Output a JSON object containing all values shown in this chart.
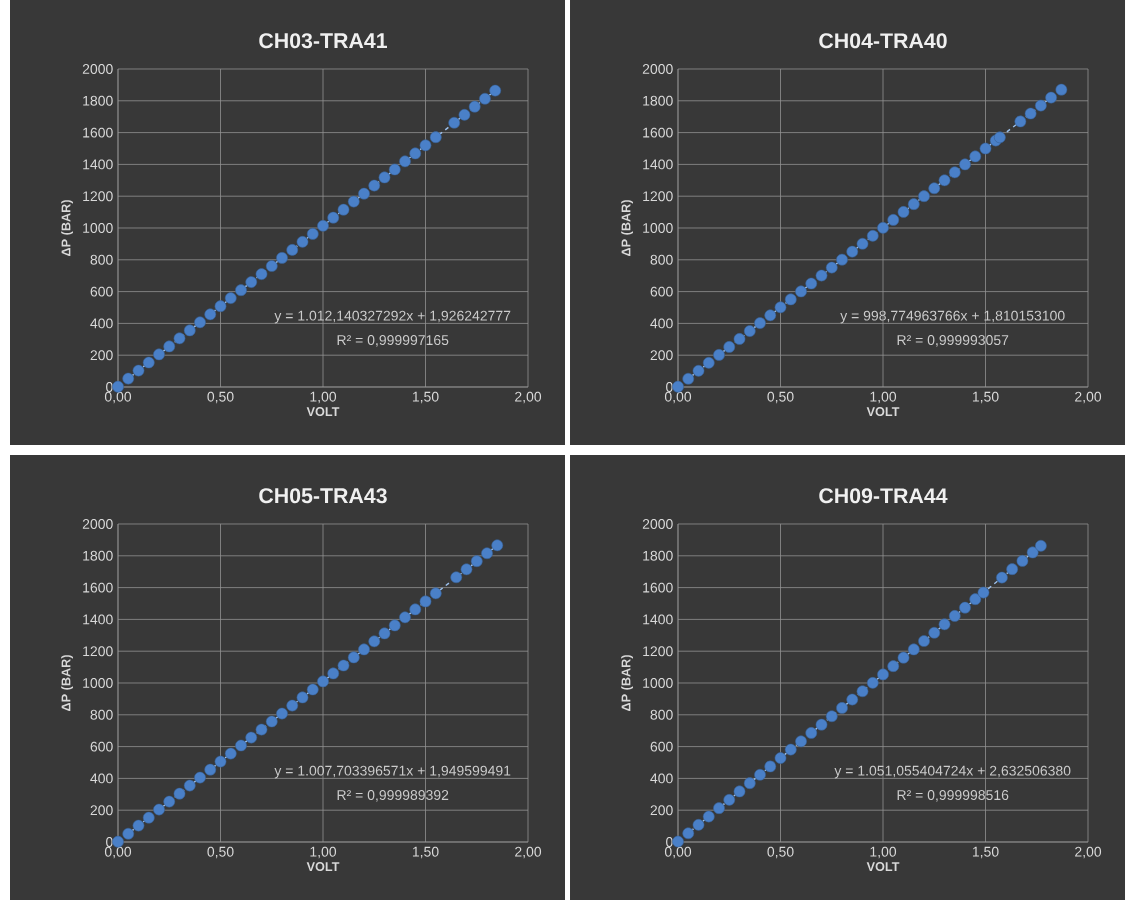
{
  "chart_data": [
    {
      "type": "scatter",
      "title": "CH03-TRA41",
      "xlabel": "VOLT",
      "ylabel": "ΔP (BAR)",
      "xlim": [
        0,
        2
      ],
      "ylim": [
        0,
        2000
      ],
      "xticks": [
        {
          "value": 0,
          "label": "0,00"
        },
        {
          "value": 0.5,
          "label": "0,50"
        },
        {
          "value": 1,
          "label": "1,00"
        },
        {
          "value": 1.5,
          "label": "1,50"
        },
        {
          "value": 2,
          "label": "2,00"
        }
      ],
      "yticks": [
        0,
        200,
        400,
        600,
        800,
        1000,
        1200,
        1400,
        1600,
        1800,
        2000
      ],
      "grid": true,
      "annotations": [
        "y = 1.012,140327292x + 1,926242777",
        "R² = 0,999997165"
      ],
      "series": [
        {
          "type": "scatter",
          "color": "#4a80c8",
          "marker": "circle",
          "x": [
            0,
            0.05,
            0.1,
            0.15,
            0.2,
            0.25,
            0.3,
            0.35,
            0.4,
            0.45,
            0.5,
            0.55,
            0.6,
            0.65,
            0.7,
            0.75,
            0.8,
            0.85,
            0.9,
            0.95,
            1,
            1.05,
            1.1,
            1.15,
            1.2,
            1.25,
            1.3,
            1.35,
            1.4,
            1.45,
            1.5,
            1.55,
            1.64,
            1.69,
            1.74,
            1.79,
            1.84
          ],
          "values": [
            2,
            53,
            103,
            154,
            205,
            255,
            306,
            356,
            407,
            457,
            508,
            559,
            609,
            660,
            710,
            761,
            812,
            862,
            913,
            963,
            1014,
            1065,
            1115,
            1166,
            1216,
            1267,
            1318,
            1368,
            1419,
            1469,
            1520,
            1571,
            1662,
            1712,
            1763,
            1813,
            1864
          ]
        },
        {
          "type": "line",
          "color": "#9cc0ec",
          "line_style": "dashed",
          "marker": "none",
          "x": [
            0,
            1.84
          ],
          "values": [
            2,
            1864
          ]
        }
      ]
    },
    {
      "type": "scatter",
      "title": "CH04-TRA40",
      "xlabel": "VOLT",
      "ylabel": "ΔP (BAR)",
      "xlim": [
        0,
        2
      ],
      "ylim": [
        0,
        2000
      ],
      "xticks": [
        {
          "value": 0,
          "label": "0,00"
        },
        {
          "value": 0.5,
          "label": "0,50"
        },
        {
          "value": 1,
          "label": "1,00"
        },
        {
          "value": 1.5,
          "label": "1,50"
        },
        {
          "value": 2,
          "label": "2,00"
        }
      ],
      "yticks": [
        0,
        200,
        400,
        600,
        800,
        1000,
        1200,
        1400,
        1600,
        1800,
        2000
      ],
      "grid": true,
      "annotations": [
        "y = 998,774963766x + 1,810153100",
        "R² = 0,999993057"
      ],
      "series": [
        {
          "type": "scatter",
          "color": "#4a80c8",
          "marker": "circle",
          "x": [
            0,
            0.05,
            0.1,
            0.15,
            0.2,
            0.25,
            0.3,
            0.35,
            0.4,
            0.45,
            0.5,
            0.55,
            0.6,
            0.65,
            0.7,
            0.75,
            0.8,
            0.85,
            0.9,
            0.95,
            1,
            1.05,
            1.1,
            1.15,
            1.2,
            1.25,
            1.3,
            1.35,
            1.4,
            1.45,
            1.5,
            1.55,
            1.57,
            1.67,
            1.72,
            1.77,
            1.82,
            1.87
          ],
          "values": [
            2,
            52,
            102,
            152,
            202,
            252,
            302,
            352,
            402,
            451,
            501,
            551,
            601,
            651,
            701,
            751,
            801,
            851,
            901,
            951,
            1001,
            1051,
            1101,
            1150,
            1200,
            1250,
            1300,
            1350,
            1400,
            1450,
            1500,
            1550,
            1570,
            1670,
            1720,
            1770,
            1820,
            1870
          ]
        },
        {
          "type": "line",
          "color": "#9cc0ec",
          "line_style": "dashed",
          "marker": "none",
          "x": [
            0,
            1.87
          ],
          "values": [
            2,
            1870
          ]
        }
      ]
    },
    {
      "type": "scatter",
      "title": "CH05-TRA43",
      "xlabel": "VOLT",
      "ylabel": "ΔP (BAR)",
      "xlim": [
        0,
        2
      ],
      "ylim": [
        0,
        2000
      ],
      "xticks": [
        {
          "value": 0,
          "label": "0,00"
        },
        {
          "value": 0.5,
          "label": "0,50"
        },
        {
          "value": 1,
          "label": "1,00"
        },
        {
          "value": 1.5,
          "label": "1,50"
        },
        {
          "value": 2,
          "label": "2,00"
        }
      ],
      "yticks": [
        0,
        200,
        400,
        600,
        800,
        1000,
        1200,
        1400,
        1600,
        1800,
        2000
      ],
      "grid": true,
      "annotations": [
        "y = 1.007,703396571x + 1,949599491",
        "R² = 0,999989392"
      ],
      "series": [
        {
          "type": "scatter",
          "color": "#4a80c8",
          "marker": "circle",
          "x": [
            0,
            0.05,
            0.1,
            0.15,
            0.2,
            0.25,
            0.3,
            0.35,
            0.4,
            0.45,
            0.5,
            0.55,
            0.6,
            0.65,
            0.7,
            0.75,
            0.8,
            0.85,
            0.9,
            0.95,
            1,
            1.05,
            1.1,
            1.15,
            1.2,
            1.25,
            1.3,
            1.35,
            1.4,
            1.45,
            1.5,
            1.55,
            1.65,
            1.7,
            1.75,
            1.8,
            1.85
          ],
          "values": [
            2,
            52,
            103,
            153,
            204,
            254,
            304,
            355,
            405,
            455,
            506,
            556,
            607,
            657,
            707,
            758,
            808,
            858,
            909,
            959,
            1010,
            1060,
            1110,
            1161,
            1211,
            1262,
            1312,
            1362,
            1413,
            1463,
            1513,
            1564,
            1665,
            1715,
            1766,
            1816,
            1866
          ]
        },
        {
          "type": "line",
          "color": "#9cc0ec",
          "line_style": "dashed",
          "marker": "none",
          "x": [
            0,
            1.85
          ],
          "values": [
            2,
            1866
          ]
        }
      ]
    },
    {
      "type": "scatter",
      "title": "CH09-TRA44",
      "xlabel": "VOLT",
      "ylabel": "ΔP (BAR)",
      "xlim": [
        0,
        2
      ],
      "ylim": [
        0,
        2000
      ],
      "xticks": [
        {
          "value": 0,
          "label": "0,00"
        },
        {
          "value": 0.5,
          "label": "0,50"
        },
        {
          "value": 1,
          "label": "1,00"
        },
        {
          "value": 1.5,
          "label": "1,50"
        },
        {
          "value": 2,
          "label": "2,00"
        }
      ],
      "yticks": [
        0,
        200,
        400,
        600,
        800,
        1000,
        1200,
        1400,
        1600,
        1800,
        2000
      ],
      "grid": true,
      "annotations": [
        "y = 1.051,055404724x + 2,632506380",
        "R² = 0,999998516"
      ],
      "series": [
        {
          "type": "scatter",
          "color": "#4a80c8",
          "marker": "circle",
          "x": [
            0,
            0.05,
            0.1,
            0.15,
            0.2,
            0.25,
            0.3,
            0.35,
            0.4,
            0.45,
            0.5,
            0.55,
            0.6,
            0.65,
            0.7,
            0.75,
            0.8,
            0.85,
            0.9,
            0.95,
            1,
            1.05,
            1.1,
            1.15,
            1.2,
            1.25,
            1.3,
            1.35,
            1.4,
            1.45,
            1.49,
            1.58,
            1.63,
            1.68,
            1.73,
            1.77
          ],
          "values": [
            3,
            55,
            108,
            160,
            213,
            265,
            318,
            370,
            423,
            475,
            528,
            581,
            633,
            686,
            738,
            791,
            843,
            896,
            948,
            1001,
            1054,
            1106,
            1159,
            1211,
            1264,
            1316,
            1369,
            1422,
            1474,
            1527,
            1569,
            1663,
            1716,
            1768,
            1821,
            1863
          ]
        },
        {
          "type": "line",
          "color": "#9cc0ec",
          "line_style": "dashed",
          "marker": "none",
          "x": [
            0,
            1.77
          ],
          "values": [
            3,
            1863
          ]
        }
      ]
    }
  ]
}
